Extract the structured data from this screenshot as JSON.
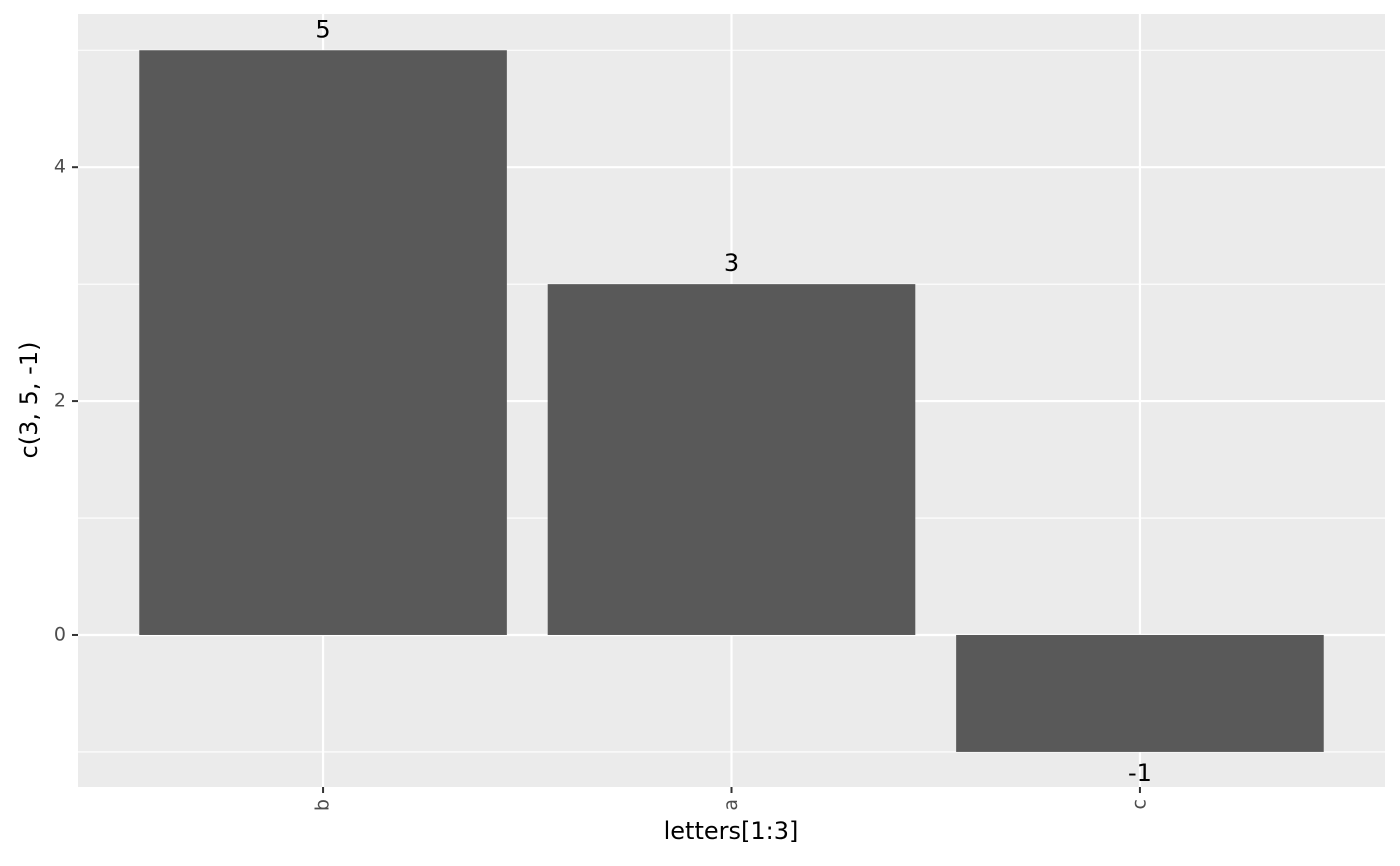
{
  "chart_data": {
    "type": "bar",
    "categories": [
      "b",
      "a",
      "c"
    ],
    "values": [
      5,
      3,
      -1
    ],
    "color": "#595959",
    "x_label": "letters[1:3]",
    "y_label": "c(3, 5, -1)",
    "ylim": [
      -1.3,
      5.31
    ],
    "yticks": [
      0,
      2,
      4
    ],
    "grid": true,
    "minor_grid": true,
    "data_labels": true
  }
}
